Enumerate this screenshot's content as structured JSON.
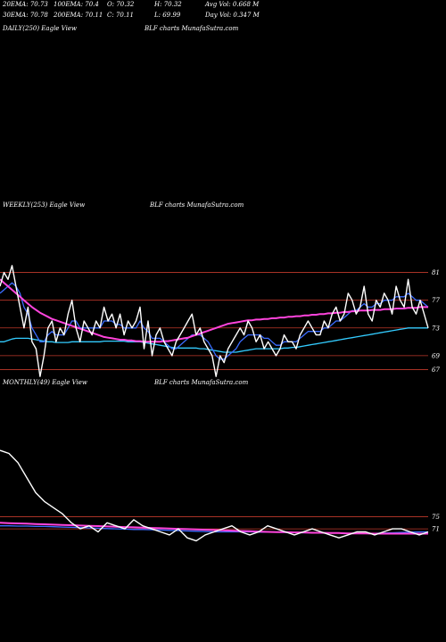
{
  "header": {
    "stats": [
      {
        "key": "ema20",
        "text": "20EMA: 70.73"
      },
      {
        "key": "ema100",
        "text": "100EMA: 70.4"
      },
      {
        "key": "open",
        "text": "O: 70.32"
      },
      {
        "key": "high",
        "text": "H: 70.32"
      },
      {
        "key": "avgvol",
        "text": "Avg Vol: 0.668  M"
      },
      {
        "key": "ema30",
        "text": "30EMA: 70.78"
      },
      {
        "key": "ema200",
        "text": "200EMA: 70.11"
      },
      {
        "key": "close",
        "text": "C: 70.11"
      },
      {
        "key": "low",
        "text": "L: 69.99"
      },
      {
        "key": "dayvol",
        "text": "Day Vol: 0.347  M"
      }
    ]
  },
  "panels": {
    "daily": {
      "label": "DAILY(250) Eagle  View",
      "source": "BLF charts MunafaSutra.com"
    },
    "weekly": {
      "label": "WEEKLY(253) Eagle  View",
      "source": "BLF charts MunafaSutra.com"
    },
    "monthly": {
      "label": "MONTHLY(49) Eagle  View",
      "source": "BLF charts MunafaSutra.com"
    }
  },
  "colors": {
    "price": "#ffffff",
    "ema_blue": "#3b6cff",
    "ema_pink": "#ff44dd",
    "ema_cyan": "#33ccff",
    "level_line": "#c0392b",
    "ema_gray": "#8888aa",
    "ema_yellow": "#c8b060"
  },
  "chart_data": [
    {
      "type": "line",
      "panel": "weekly",
      "ylim": [
        65,
        83
      ],
      "y_ticks": [
        "81",
        "77",
        "73",
        "69",
        "67"
      ],
      "y_tick_values": [
        81,
        77,
        73,
        69,
        67
      ],
      "levels": [
        81,
        77,
        73,
        69,
        67
      ],
      "series": [
        {
          "role": "price",
          "values": [
            79,
            81,
            80,
            82,
            79,
            76,
            73,
            76,
            71,
            70,
            66,
            69,
            73,
            74,
            71,
            73,
            72,
            75,
            77,
            73,
            71,
            74,
            73,
            72,
            74,
            73,
            76,
            74,
            75,
            73,
            75,
            72,
            74,
            73,
            74,
            76,
            70,
            74,
            69,
            72,
            73,
            71,
            70,
            69,
            71,
            72,
            73,
            74,
            75,
            72,
            73,
            71,
            70,
            69,
            66,
            69,
            68,
            70,
            71,
            72,
            73,
            72,
            74,
            73,
            71,
            72,
            70,
            71,
            70,
            69,
            70,
            72,
            71,
            71,
            70,
            72,
            73,
            74,
            73,
            72,
            72,
            74,
            73,
            75,
            76,
            74,
            75,
            78,
            77,
            75,
            76,
            79,
            75,
            74,
            77,
            76,
            78,
            77,
            75,
            79,
            77,
            76,
            80,
            76,
            75,
            77,
            75,
            73
          ]
        },
        {
          "role": "ema-pink",
          "values": [
            80,
            79.5,
            79,
            78.5,
            78,
            77.5,
            77,
            76.5,
            76,
            75.6,
            75.2,
            74.9,
            74.6,
            74.3,
            74.1,
            73.9,
            73.7,
            73.5,
            73.3,
            73.1,
            72.9,
            72.7,
            72.5,
            72.3,
            72.1,
            71.9,
            71.7,
            71.6,
            71.5,
            71.4,
            71.3,
            71.3,
            71.2,
            71.2,
            71.1,
            71.1,
            71.0,
            71.0,
            71.0,
            71.0,
            71.0,
            71.1,
            71.1,
            71.2,
            71.3,
            71.4,
            71.5,
            71.6,
            71.8,
            72.0,
            72.2,
            72.4,
            72.6,
            72.8,
            73.0,
            73.2,
            73.4,
            73.6,
            73.7,
            73.8,
            73.9,
            74.0,
            74.1,
            74.1,
            74.2,
            74.2,
            74.3,
            74.3,
            74.4,
            74.4,
            74.5,
            74.5,
            74.6,
            74.6,
            74.7,
            74.7,
            74.8,
            74.8,
            74.9,
            74.9,
            75.0,
            75.0,
            75.1,
            75.1,
            75.2,
            75.2,
            75.3,
            75.3,
            75.4,
            75.4,
            75.5,
            75.5,
            75.5,
            75.6,
            75.6,
            75.6,
            75.7,
            75.7,
            75.7,
            75.8,
            75.8,
            75.8,
            75.9,
            75.9,
            75.9,
            76.0,
            76.0,
            76.0
          ]
        },
        {
          "role": "ema-blue",
          "values": [
            78,
            78.5,
            79,
            79.5,
            79,
            78,
            76,
            75,
            73,
            72,
            71,
            71,
            72,
            72.5,
            72,
            72,
            72,
            73,
            74,
            74,
            73,
            73,
            73,
            73,
            73,
            73,
            74,
            74,
            74,
            73.5,
            73.5,
            73,
            73,
            73,
            73,
            74,
            73,
            72.5,
            71.5,
            71.5,
            71.5,
            71,
            70.5,
            70,
            70,
            70.5,
            71,
            71.5,
            72,
            72,
            72,
            71.5,
            71,
            70,
            69,
            68.5,
            68.5,
            69,
            69.5,
            70,
            71,
            71.5,
            72,
            72,
            72,
            72,
            71.5,
            71.5,
            71,
            70.5,
            70.5,
            71,
            71,
            71,
            71,
            71.5,
            72,
            72.5,
            72.5,
            72.5,
            72.5,
            73,
            73,
            73.5,
            74,
            74,
            74.5,
            75,
            75.5,
            75.5,
            76,
            76.5,
            76,
            76,
            76.5,
            76.5,
            77,
            77,
            77,
            77.5,
            77.5,
            77.5,
            78,
            77.5,
            77,
            77,
            76.5,
            76
          ]
        },
        {
          "role": "ema-cyan",
          "values": [
            71,
            71,
            71.2,
            71.4,
            71.5,
            71.5,
            71.5,
            71.5,
            71.4,
            71.3,
            71.2,
            71.1,
            71.0,
            71.0,
            70.9,
            70.9,
            70.9,
            70.9,
            71.0,
            71.0,
            71.0,
            71.0,
            71.0,
            71.0,
            71.0,
            71.0,
            71.1,
            71.1,
            71.1,
            71.1,
            71.1,
            71.1,
            71.0,
            71.0,
            71.0,
            71.0,
            70.9,
            70.8,
            70.7,
            70.6,
            70.5,
            70.4,
            70.3,
            70.2,
            70.1,
            70.1,
            70.1,
            70.1,
            70.1,
            70.1,
            70.0,
            70.0,
            69.9,
            69.8,
            69.7,
            69.6,
            69.5,
            69.5,
            69.5,
            69.5,
            69.6,
            69.7,
            69.8,
            69.9,
            70.0,
            70.0,
            70.0,
            70.0,
            70.0,
            70.0,
            70.0,
            70.1,
            70.1,
            70.2,
            70.2,
            70.3,
            70.4,
            70.5,
            70.6,
            70.7,
            70.8,
            70.9,
            71.0,
            71.1,
            71.2,
            71.3,
            71.4,
            71.5,
            71.6,
            71.7,
            71.8,
            71.9,
            72.0,
            72.1,
            72.2,
            72.3,
            72.4,
            72.5,
            72.6,
            72.7,
            72.8,
            72.9,
            73.0,
            73.0,
            73.0,
            73.0,
            73.0,
            73.0
          ]
        }
      ]
    },
    {
      "type": "line",
      "panel": "monthly",
      "ylim": [
        66,
        100
      ],
      "y_ticks": [
        "75",
        "71"
      ],
      "y_tick_values": [
        75,
        71
      ],
      "levels": [
        75,
        71
      ],
      "series": [
        {
          "role": "price",
          "values": [
            97,
            96,
            93,
            88,
            83,
            80,
            78,
            76,
            73,
            71,
            72,
            70,
            73,
            72,
            71,
            74,
            72,
            71,
            70,
            69,
            71,
            68,
            67,
            69,
            70,
            71,
            72,
            70,
            69,
            70,
            72,
            71,
            70,
            69,
            70,
            71,
            70,
            69,
            68,
            69,
            70,
            70,
            69,
            70,
            71,
            71,
            70,
            69,
            70
          ]
        },
        {
          "role": "ema-pink",
          "values": [
            73,
            72.9,
            72.8,
            72.7,
            72.6,
            72.5,
            72.4,
            72.3,
            72.2,
            72.1,
            72.0,
            71.9,
            71.8,
            71.7,
            71.6,
            71.5,
            71.4,
            71.3,
            71.2,
            71.1,
            71.0,
            70.9,
            70.8,
            70.7,
            70.6,
            70.5,
            70.4,
            70.3,
            70.2,
            70.1,
            70.0,
            69.9,
            69.9,
            69.8,
            69.8,
            69.7,
            69.7,
            69.6,
            69.6,
            69.5,
            69.5,
            69.5,
            69.4,
            69.4,
            69.4,
            69.4,
            69.4,
            69.4,
            69.4
          ]
        },
        {
          "role": "ema-blue",
          "values": [
            72,
            72,
            71.9,
            71.9,
            71.8,
            71.8,
            71.7,
            71.6,
            71.5,
            71.4,
            71.3,
            71.2,
            71.1,
            71.0,
            70.9,
            70.8,
            70.8,
            70.7,
            70.6,
            70.5,
            70.4,
            70.3,
            70.2,
            70.1,
            70.0,
            70.0,
            70.0,
            70.0,
            70.0,
            69.9,
            69.9,
            69.9,
            69.8,
            69.8,
            69.7,
            69.7,
            69.6,
            69.6,
            69.6,
            69.5,
            69.5,
            69.5,
            69.5,
            69.6,
            69.7,
            69.8,
            69.9,
            70.0,
            70.0
          ]
        }
      ]
    }
  ]
}
